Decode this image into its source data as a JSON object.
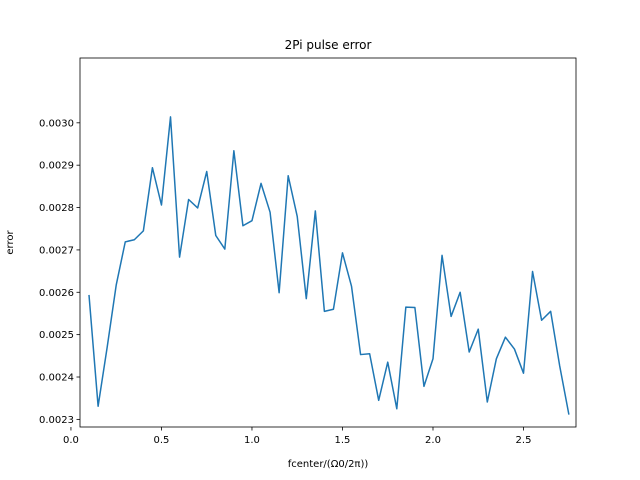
{
  "chart_data": {
    "type": "line",
    "title": "2Pi pulse error",
    "xlabel": "fcenter/(Ω0/2π))",
    "ylabel": "error",
    "xlim": [
      0.05,
      2.79
    ],
    "ylim": [
      0.002282,
      0.003153
    ],
    "grid": false,
    "color": "#1f77b4",
    "x_ticks": [
      0.0,
      0.5,
      1.0,
      1.5,
      2.0,
      2.5
    ],
    "x_tick_labels": [
      "0.0",
      "0.5",
      "1.0",
      "1.5",
      "2.0",
      "2.5"
    ],
    "y_ticks": [
      0.0023,
      0.0024,
      0.0025,
      0.0026,
      0.0027,
      0.0028,
      0.0029,
      0.003
    ],
    "y_tick_labels": [
      "0.0023",
      "0.0024",
      "0.0025",
      "0.0026",
      "0.0027",
      "0.0028",
      "0.0029",
      "0.0030"
    ],
    "series": [
      {
        "x": [
          0.1,
          0.15,
          0.2,
          0.25,
          0.3,
          0.35,
          0.4,
          0.45,
          0.5,
          0.55,
          0.6,
          0.65,
          0.7,
          0.75,
          0.8,
          0.85,
          0.9,
          0.95,
          1.0,
          1.05,
          1.1,
          1.15,
          1.2,
          1.25,
          1.3,
          1.35,
          1.4,
          1.45,
          1.5,
          1.55,
          1.6,
          1.65,
          1.7,
          1.75,
          1.8,
          1.85,
          1.9,
          1.95,
          2.0,
          2.05,
          2.1,
          2.15,
          2.2,
          2.25,
          2.3,
          2.35,
          2.4,
          2.45,
          2.5,
          2.55,
          2.6,
          2.65,
          2.7,
          2.75
        ],
        "values": [
          0.002592,
          0.002331,
          0.00247,
          0.002617,
          0.002719,
          0.002724,
          0.002745,
          0.002894,
          0.002806,
          0.003014,
          0.002683,
          0.002819,
          0.002799,
          0.002885,
          0.002734,
          0.002702,
          0.002934,
          0.002757,
          0.002769,
          0.002857,
          0.002789,
          0.002599,
          0.002875,
          0.002779,
          0.002585,
          0.002792,
          0.002555,
          0.00256,
          0.002693,
          0.002614,
          0.002453,
          0.002455,
          0.002345,
          0.002435,
          0.002325,
          0.002565,
          0.002564,
          0.002378,
          0.002443,
          0.002687,
          0.002543,
          0.0026,
          0.002459,
          0.002513,
          0.002341,
          0.002443,
          0.002494,
          0.002466,
          0.002409,
          0.002649,
          0.002534,
          0.002555,
          0.002426,
          0.002313
        ]
      }
    ]
  }
}
